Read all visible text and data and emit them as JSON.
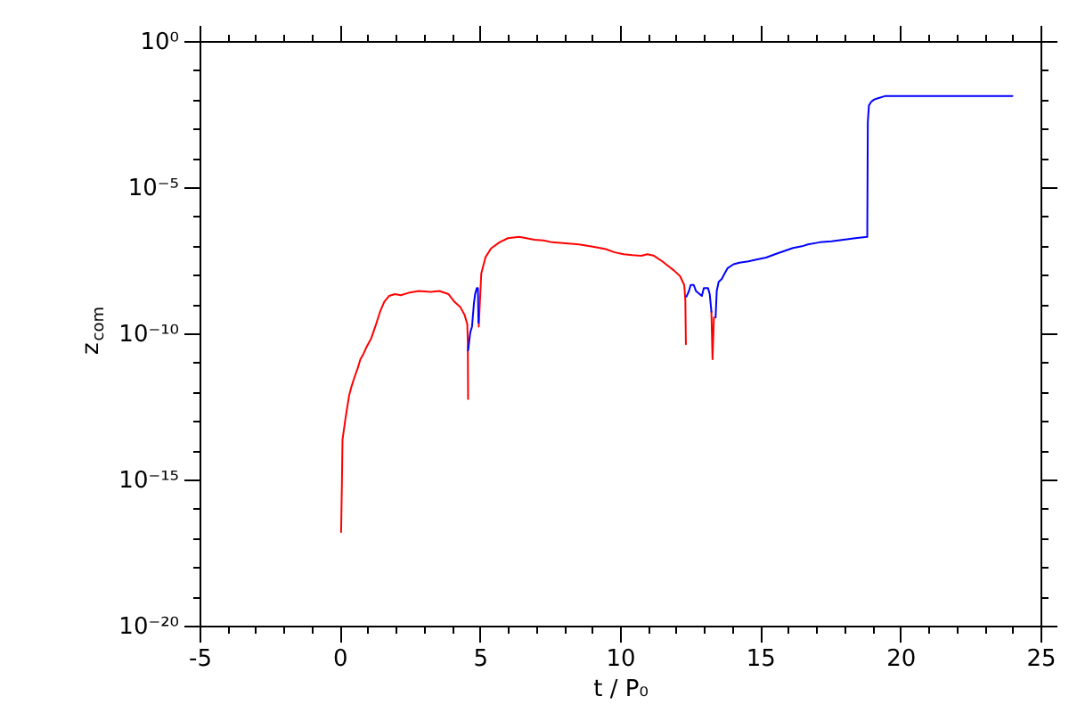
{
  "chart_data": {
    "type": "line",
    "xlabel": "t / P₀",
    "ylabel": "z$_{com}$",
    "log": true,
    "xlim": [
      -5,
      25
    ],
    "ylim": [
      1e-20,
      1
    ],
    "xticks": [
      -5,
      {
        "value": -4,
        "label": null
      },
      {
        "value": -3,
        "label": null
      },
      {
        "value": -2,
        "label": null
      },
      {
        "value": -1,
        "label": null
      },
      0,
      {
        "value": 1,
        "label": null
      },
      {
        "value": 2,
        "label": null
      },
      {
        "value": 3,
        "label": null
      },
      {
        "value": 4,
        "label": null
      },
      5,
      {
        "value": 6,
        "label": null
      },
      {
        "value": 7,
        "label": null
      },
      {
        "value": 8,
        "label": null
      },
      {
        "value": 9,
        "label": null
      },
      10,
      {
        "value": 11,
        "label": null
      },
      {
        "value": 12,
        "label": null
      },
      {
        "value": 13,
        "label": null
      },
      {
        "value": 14,
        "label": null
      },
      15,
      {
        "value": 16,
        "label": null
      },
      {
        "value": 17,
        "label": null
      },
      {
        "value": 18,
        "label": null
      },
      {
        "value": 19,
        "label": null
      },
      20,
      {
        "value": 21,
        "label": null
      },
      {
        "value": 22,
        "label": null
      },
      {
        "value": 23,
        "label": null
      },
      {
        "value": 24,
        "label": null
      },
      25
    ],
    "yticks": [
      {
        "value": 1e-20,
        "label": "10⁻²⁰"
      },
      {
        "value": 1e-19,
        "label": null
      },
      {
        "value": 1e-18,
        "label": null
      },
      {
        "value": 1e-17,
        "label": null
      },
      {
        "value": 1e-16,
        "label": null
      },
      {
        "value": 1e-15,
        "label": "10⁻¹⁵"
      },
      {
        "value": 1e-14,
        "label": null
      },
      {
        "value": 1e-13,
        "label": null
      },
      {
        "value": 1e-12,
        "label": null
      },
      {
        "value": 1e-11,
        "label": null
      },
      {
        "value": 1e-10,
        "label": "10⁻¹⁰"
      },
      {
        "value": 1e-09,
        "label": null
      },
      {
        "value": 1e-08,
        "label": null
      },
      {
        "value": 1e-07,
        "label": null
      },
      {
        "value": 1e-06,
        "label": null
      },
      {
        "value": 1e-05,
        "label": "10⁻⁵"
      },
      {
        "value": 0.0001,
        "label": null
      },
      {
        "value": 0.001,
        "label": null
      },
      {
        "value": 0.01,
        "label": null
      },
      {
        "value": 0.1,
        "label": null
      },
      {
        "value": 1,
        "label": "10⁰"
      }
    ],
    "series": [
      {
        "color": "#ff0000",
        "x": [
          0.05,
          0.08,
          0.1,
          0.21,
          0.27,
          0.34,
          0.42,
          0.53,
          0.64,
          0.74,
          0.85,
          0.95,
          1.12,
          1.27,
          1.44,
          1.59,
          1.76,
          1.97,
          2.18,
          2.5,
          2.82,
          3.24,
          3.56,
          3.88,
          4.09,
          4.3,
          4.45,
          4.55,
          4.57,
          4.58,
          4.8,
          4.96,
          5.0,
          5.05,
          5.2,
          5.4,
          5.7,
          6.0,
          6.4,
          6.95,
          7.27,
          7.58,
          8.54,
          9.07,
          9.49,
          9.81,
          10.13,
          10.44,
          10.76,
          10.97,
          11.19,
          11.51,
          11.72,
          11.93,
          12.14,
          12.29,
          12.33,
          12.35,
          12.8,
          13.26,
          13.3,
          13.35
        ],
        "values": [
          1.6e-17,
          8.7e-16,
          2.3e-14,
          1.3e-13,
          3e-13,
          7.8e-13,
          1.5e-12,
          3.2e-12,
          6.3e-12,
          1.3e-11,
          2e-11,
          3.3e-11,
          6.6e-11,
          1.7e-10,
          5.5e-10,
          1.2e-09,
          1.9e-09,
          2.2e-09,
          2e-09,
          2.5e-09,
          2.8e-09,
          2.6e-09,
          2.8e-09,
          2.2e-09,
          1.2e-09,
          8e-10,
          4.4e-10,
          2.1e-10,
          5.2e-11,
          5.6e-13,
          null,
          1.7e-10,
          1.1e-09,
          1.1e-08,
          4e-08,
          8e-08,
          1.3e-07,
          1.8e-07,
          2e-07,
          1.6e-07,
          1.5e-07,
          1.3e-07,
          1.1e-07,
          9.1e-08,
          7.6e-08,
          5.9e-08,
          5.1e-08,
          4.7e-08,
          4.5e-08,
          5.1e-08,
          4.6e-08,
          2.9e-08,
          2e-08,
          1.4e-08,
          9.1e-09,
          4.5e-09,
          1.4e-09,
          4.2e-11,
          null,
          5.5e-10,
          1.3e-11,
          3.5e-10
        ]
      },
      {
        "color": "#0000ff",
        "x": [
          4.58,
          4.66,
          4.72,
          4.79,
          4.83,
          4.89,
          4.93,
          4.95,
          8.0,
          12.37,
          12.46,
          12.52,
          12.63,
          12.71,
          12.84,
          12.92,
          12.99,
          13.14,
          13.2,
          13.26,
          13.3,
          13.41,
          13.45,
          13.52,
          13.63,
          13.73,
          13.84,
          14.05,
          14.26,
          14.58,
          14.9,
          15.21,
          15.53,
          15.85,
          16.17,
          16.49,
          16.7,
          17.12,
          17.54,
          17.97,
          18.39,
          18.82,
          18.84,
          18.88,
          18.96,
          19.07,
          19.2,
          19.45,
          24.0
        ],
        "values": [
          2.6e-11,
          1.1e-10,
          1.7e-10,
          1.1e-09,
          2.2e-09,
          3.5e-09,
          3.5e-09,
          2.3e-10,
          null,
          1.8e-09,
          2.8e-09,
          4.5e-09,
          4.5e-09,
          2.8e-09,
          2.2e-09,
          1.9e-09,
          3.5e-09,
          3.5e-09,
          2.2e-09,
          5.5e-10,
          null,
          3.5e-10,
          2.8e-09,
          5.8e-09,
          7.2e-09,
          1.1e-08,
          1.7e-08,
          2.3e-08,
          2.6e-08,
          2.9e-08,
          3.4e-08,
          3.9e-08,
          5.1e-08,
          6.5e-08,
          8.3e-08,
          9.5e-08,
          1.1e-07,
          1.3e-07,
          1.4e-07,
          1.6e-07,
          1.8e-07,
          2e-07,
          0.0017,
          0.0063,
          0.0083,
          0.01,
          0.011,
          0.013,
          0.013
        ]
      }
    ]
  }
}
